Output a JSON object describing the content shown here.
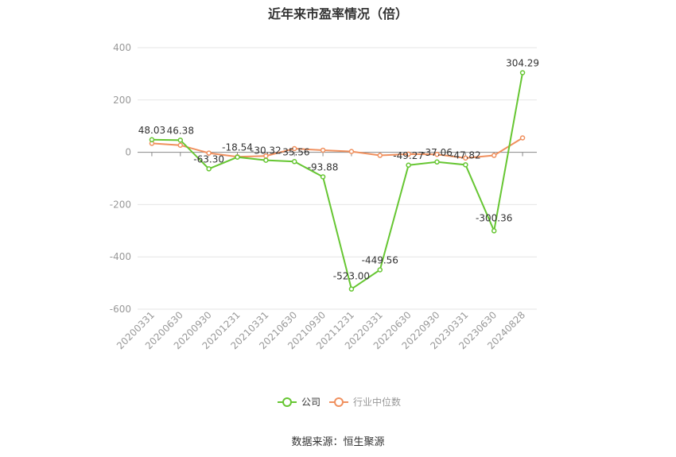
{
  "title": "近年来市盈率情况（倍）",
  "source": "数据来源：恒生聚源",
  "colors": {
    "company": "#66c632",
    "industry": "#f0905e",
    "grid": "#e6e6e6",
    "axis": "#999999",
    "text": "#333333"
  },
  "chart_data": {
    "type": "line",
    "title": "近年来市盈率情况（倍）",
    "xlabel": "",
    "ylabel": "",
    "ylim": [
      -600,
      400
    ],
    "yticks": [
      400,
      200,
      0,
      -200,
      -400,
      -600
    ],
    "grid": true,
    "legend_position": "bottom",
    "categories": [
      "20200331",
      "20200630",
      "20200930",
      "20201231",
      "20210331",
      "20210630",
      "20210930",
      "20211231",
      "20220331",
      "20220630",
      "20220930",
      "20230331",
      "20230630",
      "20240828"
    ],
    "series": [
      {
        "name": "公司",
        "values": [
          48.03,
          46.38,
          -63.3,
          -18.54,
          -30.32,
          -35.56,
          -93.88,
          -523.0,
          -449.56,
          -49.27,
          -37.06,
          -47.82,
          -300.36,
          304.29
        ],
        "labels": [
          "48.03",
          "46.38",
          "-63.30",
          "-18.54",
          "-30.32",
          "-35.56",
          "-93.88",
          "-523.00",
          "-449.56",
          "-49.27",
          "-37.06",
          "-47.82",
          "-300.36",
          "304.29"
        ]
      },
      {
        "name": "行业中位数",
        "values": [
          34,
          27,
          -3,
          -17,
          -14,
          14,
          8,
          3,
          -12,
          -7,
          -8,
          -22,
          -12,
          55
        ]
      }
    ]
  }
}
